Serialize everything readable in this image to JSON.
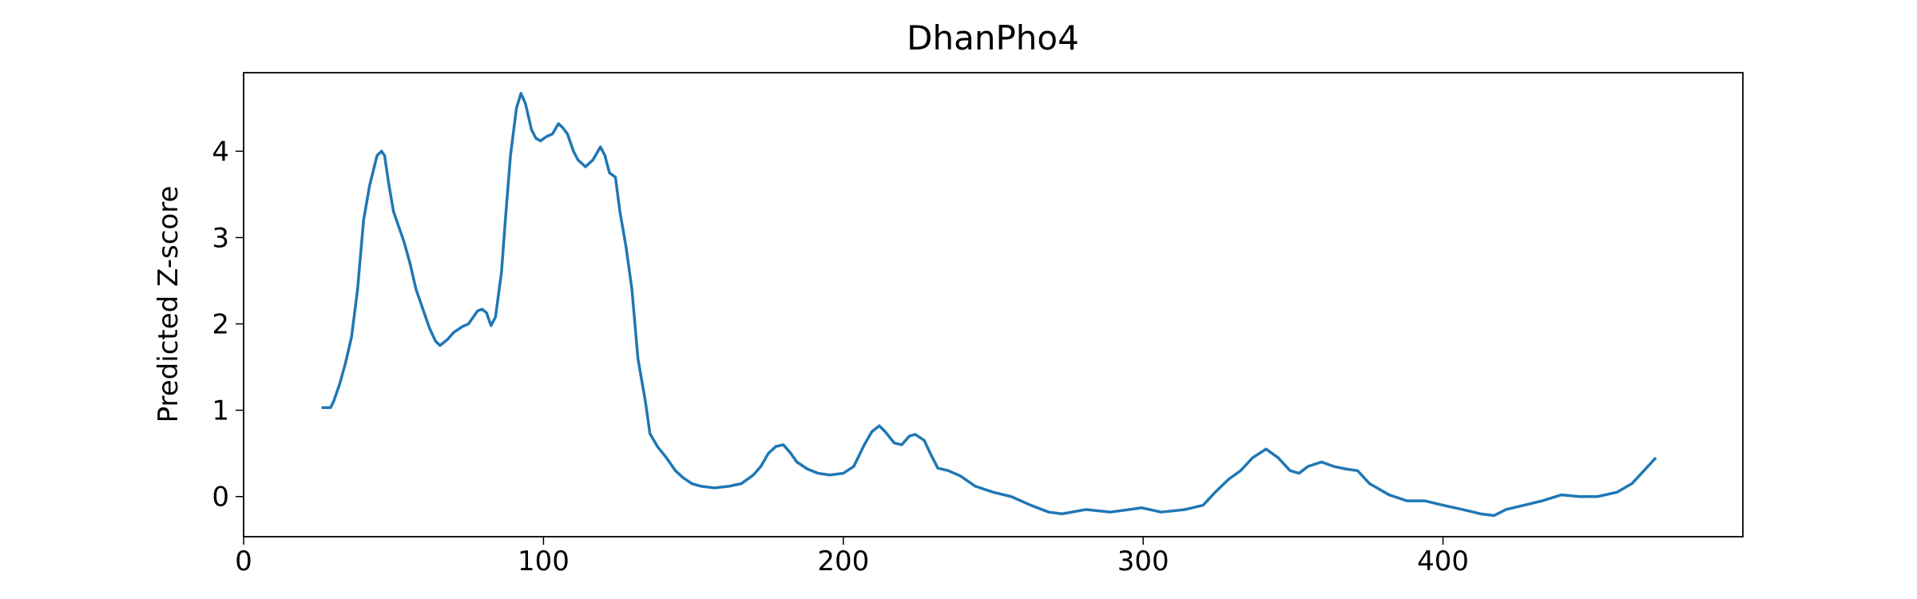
{
  "chart_data": {
    "type": "line",
    "title": "DhanPho4",
    "y_label": "Predicted Z-score",
    "x": [
      26,
      29,
      30,
      32,
      34,
      36,
      38,
      40,
      42,
      44.5,
      46,
      47,
      48.5,
      50,
      51.5,
      53.5,
      55.5,
      57.5,
      60,
      62,
      64,
      65.5,
      68,
      70,
      73,
      75,
      78,
      79.5,
      81,
      82.5,
      84,
      86,
      87.5,
      89,
      91,
      92.5,
      94,
      96,
      97.5,
      99,
      101,
      103,
      105,
      106.5,
      108,
      110,
      111.5,
      114,
      116.5,
      119,
      120.5,
      122,
      124,
      125.5,
      127.5,
      129.5,
      131.5,
      134,
      135.5,
      138,
      141,
      144,
      146.5,
      149.5,
      152.5,
      157,
      162,
      166,
      170,
      172.5,
      175,
      177.5,
      180,
      182.5,
      184.5,
      188,
      191.5,
      195.5,
      200,
      203.5,
      207,
      209.5,
      212,
      214,
      217,
      219.5,
      222,
      224,
      227,
      229,
      231.5,
      235,
      239,
      244,
      250,
      256,
      262.5,
      268.5,
      273,
      281,
      289,
      295.5,
      299.5,
      306,
      314,
      320,
      324,
      328.5,
      332.5,
      336.5,
      341,
      345,
      349,
      352,
      355,
      359.5,
      363.5,
      367.5,
      371.5,
      375.5,
      382,
      388,
      394,
      400,
      406.5,
      412.5,
      417,
      421,
      427,
      433,
      439.5,
      445.5,
      451.5,
      458,
      463,
      467,
      471
    ],
    "series": [
      {
        "color": "#1f77b4",
        "values": [
          1.03,
          1.03,
          1.1,
          1.3,
          1.55,
          1.85,
          2.4,
          3.2,
          3.6,
          3.95,
          4.0,
          3.95,
          3.6,
          3.3,
          3.15,
          2.95,
          2.7,
          2.4,
          2.15,
          1.95,
          1.8,
          1.75,
          1.82,
          1.9,
          1.97,
          2.0,
          2.15,
          2.17,
          2.13,
          1.98,
          2.08,
          2.6,
          3.3,
          3.95,
          4.5,
          4.67,
          4.55,
          4.25,
          4.15,
          4.12,
          4.17,
          4.2,
          4.32,
          4.27,
          4.2,
          4.0,
          3.9,
          3.82,
          3.9,
          4.05,
          3.95,
          3.75,
          3.7,
          3.3,
          2.9,
          2.4,
          1.6,
          1.1,
          0.73,
          0.58,
          0.45,
          0.3,
          0.22,
          0.15,
          0.12,
          0.1,
          0.12,
          0.15,
          0.25,
          0.35,
          0.5,
          0.58,
          0.6,
          0.5,
          0.4,
          0.32,
          0.27,
          0.25,
          0.27,
          0.35,
          0.6,
          0.75,
          0.82,
          0.75,
          0.62,
          0.6,
          0.7,
          0.72,
          0.65,
          0.5,
          0.33,
          0.3,
          0.24,
          0.12,
          0.05,
          0.0,
          -0.1,
          -0.18,
          -0.2,
          -0.15,
          -0.18,
          -0.15,
          -0.13,
          -0.18,
          -0.15,
          -0.1,
          0.05,
          0.2,
          0.3,
          0.45,
          0.55,
          0.45,
          0.3,
          0.27,
          0.35,
          0.4,
          0.35,
          0.32,
          0.3,
          0.15,
          0.02,
          -0.05,
          -0.05,
          -0.1,
          -0.15,
          -0.2,
          -0.22,
          -0.15,
          -0.1,
          -0.05,
          0.02,
          0.0,
          0.0,
          0.05,
          0.15,
          0.3,
          0.45
        ]
      }
    ],
    "xlim": [
      0,
      500
    ],
    "xticks": [
      0,
      100,
      200,
      300,
      400
    ],
    "ylim": [
      -0.465,
      4.91
    ],
    "yticks": [
      0,
      1,
      2,
      3,
      4
    ]
  }
}
